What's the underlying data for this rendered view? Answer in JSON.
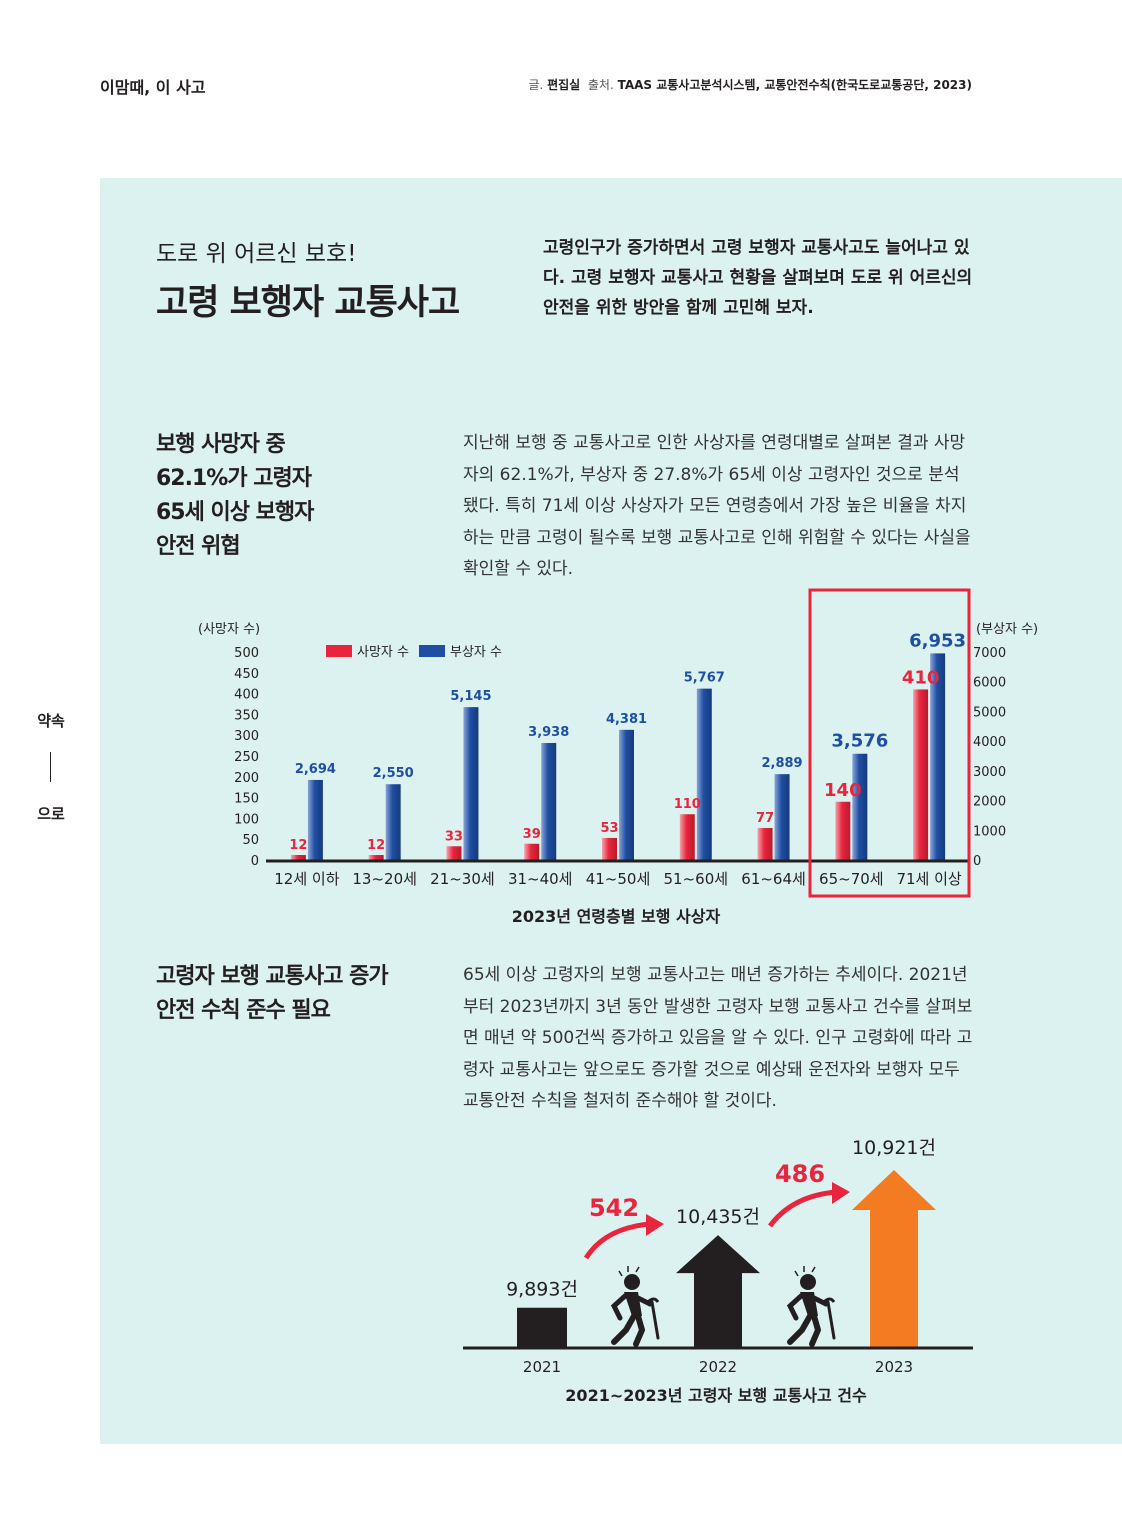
{
  "header": {
    "section": "이맘때, 이 사고",
    "writer_label": "글.",
    "writer": "편집실",
    "source_label": "출처.",
    "source": "TAAS 교통사고분석시스템, 교통안전수칙(한국도로교통공단, 2023)"
  },
  "side_tab": {
    "top": "약속",
    "bottom": "으로"
  },
  "title": {
    "subtitle": "도로 위 어르신 보호!",
    "main": "고령 보행자 교통사고"
  },
  "intro": "고령인구가 증가하면서 고령 보행자 교통사고도 늘어나고 있다. 고령 보행자 교통사고 현황을 살펴보며 도로 위 어르신의 안전을 위한 방안을 함께 고민해 보자.",
  "section1": {
    "heading": [
      "보행 사망자 중",
      "62.1%가 고령자",
      "65세 이상 보행자",
      "안전 위협"
    ],
    "body": "지난해 보행 중 교통사고로 인한 사상자를 연령대별로 살펴본 결과 사망자의 62.1%가, 부상자 중 27.8%가 65세 이상 고령자인 것으로 분석됐다. 특히 71세 이상 사상자가 모든 연령층에서 가장 높은 비율을 차지하는 만큼 고령이 될수록 보행 교통사고로 인해 위험할 수 있다는 사실을 확인할 수 있다."
  },
  "section2": {
    "heading": [
      "고령자 보행 교통사고 증가",
      "안전 수칙 준수 필요"
    ],
    "body": "65세 이상 고령자의 보행 교통사고는 매년 증가하는 추세이다. 2021년부터 2023년까지 3년 동안 발생한 고령자 보행 교통사고 건수를 살펴보면 매년 약 500건씩 증가하고 있음을 알 수 있다. 인구 고령화에 따라 고령자 교통사고는 앞으로도 증가할 것으로 예상돼 운전자와 보행자 모두 교통안전 수칙을 철저히 준수해야 할 것이다."
  },
  "colors": {
    "panel": "#dcf2f1",
    "red": "#e8253c",
    "blue": "#1f4fa3",
    "orange": "#f37b21",
    "dark": "#231f20",
    "highlight": "#e8253c"
  },
  "chart_data": [
    {
      "type": "bar",
      "title": "2023년 연령층별 보행 사상자",
      "categories": [
        "12세 이하",
        "13~20세",
        "21~30세",
        "31~40세",
        "41~50세",
        "51~60세",
        "61~64세",
        "65~70세",
        "71세 이상"
      ],
      "series": [
        {
          "name": "사망자 수",
          "axis": "left",
          "color": "#e8253c",
          "values": [
            12,
            12,
            33,
            39,
            53,
            110,
            77,
            140,
            410
          ],
          "labels": [
            "12",
            "12",
            "33",
            "39",
            "53",
            "110",
            "77",
            "140",
            "410"
          ]
        },
        {
          "name": "부상자 수",
          "axis": "right",
          "color": "#1f4fa3",
          "values": [
            2694,
            2550,
            5145,
            3938,
            4381,
            5767,
            2889,
            3576,
            6953
          ],
          "labels": [
            "2,694",
            "2,550",
            "5,145",
            "3,938",
            "4,381",
            "5,767",
            "2,889",
            "3,576",
            "6,953"
          ]
        }
      ],
      "ylabel_left": "(사망자 수)",
      "ylabel_right": "(부상자 수)",
      "ylim_left": [
        0,
        500
      ],
      "ylim_right": [
        0,
        7000
      ],
      "yticks_left": [
        "0",
        "50",
        "100",
        "150",
        "200",
        "250",
        "300",
        "350",
        "400",
        "450",
        "500"
      ],
      "yticks_right": [
        "0",
        "1000",
        "2000",
        "3000",
        "4000",
        "5000",
        "6000",
        "7000"
      ],
      "legend": "top-left",
      "grid": false,
      "highlighted_categories": [
        "65~70세",
        "71세 이상"
      ]
    },
    {
      "type": "bar",
      "title": "2021~2023년 고령자 보행 교통사고 건수",
      "categories": [
        "2021",
        "2022",
        "2023"
      ],
      "values": [
        9893,
        10435,
        10921
      ],
      "value_labels": [
        "9,893건",
        "10,435건",
        "10,921건"
      ],
      "increases": [
        "542",
        "486"
      ]
    }
  ]
}
